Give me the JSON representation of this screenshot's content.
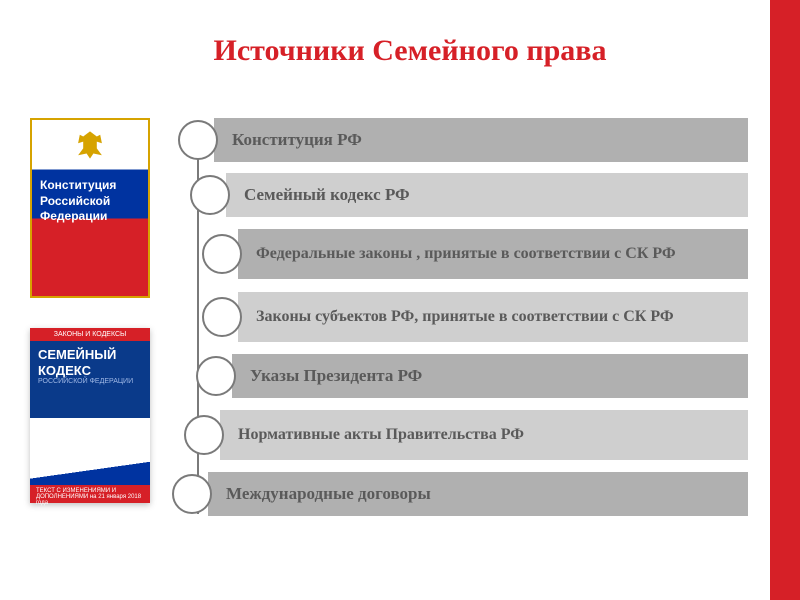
{
  "title": "Источники Семейного права",
  "title_color": "#d62027",
  "accent_sidebar_color": "#d62027",
  "background_color": "#ffffff",
  "books": {
    "constitution": {
      "label": "Конституция\nРоссийской\nФедерации",
      "flag_colors": [
        "#ffffff",
        "#0033a0",
        "#d62027"
      ],
      "border_color": "#d6a300"
    },
    "family_code": {
      "topbar": "ЗАКОНЫ И КОДЕКСЫ",
      "title": "СЕМЕЙНЫЙ\nКОДЕКС",
      "subtitle": "РОССИЙСКОЙ ФЕДЕРАЦИИ",
      "cover_bg": "#0a3a8a",
      "footer": "ТЕКСТ С ИЗМЕНЕНИЯМИ И ДОПОЛНЕНИЯМИ на 21 января 2018 года"
    }
  },
  "diagram": {
    "type": "cascade-list",
    "circle_border_color": "#7a7a7a",
    "circle_fill": "#ffffff",
    "spine_color": "#7a7a7a",
    "text_color": "#5a5a5a",
    "font_size": 17,
    "bar_colors": {
      "dark": "#b0b0b0",
      "light": "#cfcfcf"
    },
    "items": [
      {
        "label": "Конституция РФ",
        "lines": 1,
        "shade": "dark"
      },
      {
        "label": "Семейный кодекс РФ",
        "lines": 1,
        "shade": "light"
      },
      {
        "label": "Федеральные законы , принятые в соответствии с СК РФ",
        "lines": 2,
        "shade": "dark"
      },
      {
        "label": "Законы субъектов РФ, принятые в соответствии с СК РФ",
        "lines": 2,
        "shade": "light"
      },
      {
        "label": "Указы Президента РФ",
        "lines": 1,
        "shade": "dark"
      },
      {
        "label": "Нормативные акты Правительства РФ",
        "lines": 2,
        "shade": "light"
      },
      {
        "label": "Международные договоры",
        "lines": 1,
        "shade": "dark"
      }
    ]
  }
}
